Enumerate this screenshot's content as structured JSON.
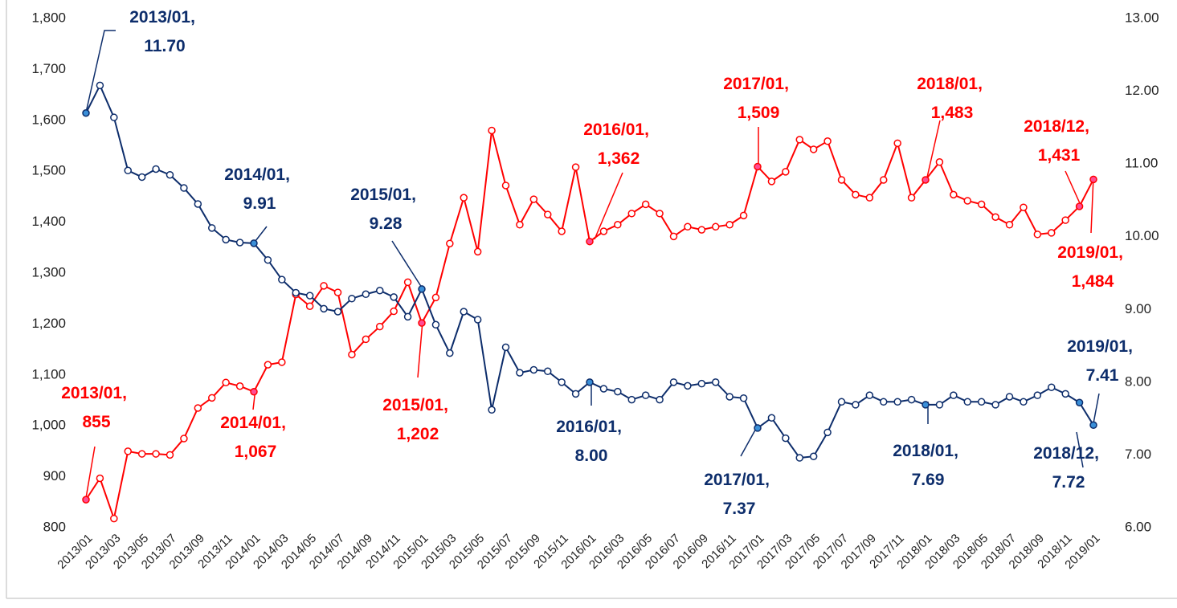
{
  "chart_data": {
    "type": "line",
    "categories": [
      "2013/01",
      null,
      "2013/03",
      null,
      "2013/05",
      null,
      "2013/07",
      null,
      "2013/09",
      null,
      "2013/11",
      null,
      "2014/01",
      null,
      "2014/03",
      null,
      "2014/05",
      null,
      "2014/07",
      null,
      "2014/09",
      null,
      "2014/11",
      null,
      "2015/01",
      null,
      "2015/03",
      null,
      "2015/05",
      null,
      "2015/07",
      null,
      "2015/09",
      null,
      "2015/11",
      null,
      "2016/01",
      null,
      "2016/03",
      null,
      "2016/05",
      null,
      "2016/07",
      null,
      "2016/09",
      null,
      "2016/11",
      null,
      "2017/01",
      null,
      "2017/03",
      null,
      "2017/05",
      null,
      "2017/07",
      null,
      "2017/09",
      null,
      "2017/11",
      null,
      "2018/01",
      null,
      "2018/03",
      null,
      "2018/05",
      null,
      "2018/07",
      null,
      "2018/09",
      null,
      "2018/11",
      null,
      "2019/01"
    ],
    "series": [
      {
        "color": "#ff0000",
        "marker_fill": "#ff4d94",
        "values": [
          855,
          897,
          818,
          950,
          945,
          945,
          943,
          975,
          1035,
          1055,
          1085,
          1078,
          1067,
          1120,
          1125,
          1258,
          1235,
          1275,
          1262,
          1140,
          1170,
          1195,
          1225,
          1282,
          1202,
          1252,
          1358,
          1448,
          1342,
          1580,
          1472,
          1395,
          1445,
          1415,
          1382,
          1508,
          1362,
          1382,
          1395,
          1417,
          1435,
          1417,
          1372,
          1391,
          1385,
          1391,
          1395,
          1413,
          1509,
          1480,
          1499,
          1562,
          1543,
          1559,
          1483,
          1454,
          1448,
          1483,
          1555,
          1448,
          1483,
          1518,
          1454,
          1442,
          1435,
          1410,
          1395,
          1429,
          1376,
          1379,
          1404,
          1431,
          1484
        ],
        "value_labels": [
          "2013/01, 855",
          null,
          null,
          null,
          null,
          null,
          null,
          null,
          null,
          null,
          null,
          null,
          "2014/01, 1,067",
          null,
          null,
          null,
          null,
          null,
          null,
          null,
          null,
          null,
          null,
          null,
          "2015/01, 1,202",
          null,
          null,
          null,
          null,
          null,
          null,
          null,
          null,
          null,
          null,
          null,
          "2016/01, 1,362",
          null,
          null,
          null,
          null,
          null,
          null,
          null,
          null,
          null,
          null,
          null,
          "2017/01, 1,509",
          null,
          null,
          null,
          null,
          null,
          null,
          null,
          null,
          null,
          null,
          null,
          "2018/01, 1,483",
          null,
          null,
          null,
          null,
          null,
          null,
          null,
          null,
          null,
          null,
          "2018/12, 1,431",
          "2019/01, 1,484"
        ]
      },
      {
        "color": "#0d2d6b",
        "marker_fill": "#3a8fd8",
        "axis": "y2",
        "values": [
          11.7,
          12.08,
          11.64,
          10.91,
          10.82,
          10.93,
          10.85,
          10.67,
          10.45,
          10.12,
          9.96,
          9.92,
          9.91,
          9.68,
          9.41,
          9.23,
          9.19,
          9.01,
          8.97,
          9.15,
          9.21,
          9.26,
          9.17,
          8.9,
          9.28,
          8.79,
          8.4,
          8.97,
          8.86,
          7.62,
          8.48,
          8.13,
          8.17,
          8.15,
          8.0,
          7.84,
          8.0,
          7.91,
          7.87,
          7.76,
          7.82,
          7.76,
          8.0,
          7.95,
          7.98,
          8.0,
          7.8,
          7.78,
          7.37,
          7.51,
          7.23,
          6.96,
          6.98,
          7.31,
          7.73,
          7.69,
          7.82,
          7.73,
          7.73,
          7.76,
          7.69,
          7.69,
          7.82,
          7.73,
          7.73,
          7.69,
          7.8,
          7.73,
          7.82,
          7.93,
          7.84,
          7.72,
          7.41
        ],
        "value_labels": [
          "2013/01, 11.70",
          null,
          null,
          null,
          null,
          null,
          null,
          null,
          null,
          null,
          null,
          null,
          "2014/01, 9.91",
          null,
          null,
          null,
          null,
          null,
          null,
          null,
          null,
          null,
          null,
          null,
          "2015/01, 9.28",
          null,
          null,
          null,
          null,
          null,
          null,
          null,
          null,
          null,
          null,
          null,
          "2016/01, 8.00",
          null,
          null,
          null,
          null,
          null,
          null,
          null,
          null,
          null,
          null,
          null,
          "2017/01, 7.37",
          null,
          null,
          null,
          null,
          null,
          null,
          null,
          null,
          null,
          null,
          null,
          "2018/01, 7.69",
          null,
          null,
          null,
          null,
          null,
          null,
          null,
          null,
          null,
          null,
          "2018/12, 7.72",
          "2019/01, 7.41"
        ]
      }
    ],
    "ylim": [
      800,
      1800
    ],
    "yticks": [
      800,
      900,
      {
        "value": 1000,
        "label": "1,000"
      },
      {
        "value": 1100,
        "label": "1,100"
      },
      {
        "value": 1200,
        "label": "1,200"
      },
      {
        "value": 1300,
        "label": "1,300"
      },
      {
        "value": 1400,
        "label": "1,400"
      },
      {
        "value": 1500,
        "label": "1,500"
      },
      {
        "value": 1600,
        "label": "1,600"
      },
      {
        "value": 1700,
        "label": "1,700"
      },
      {
        "value": 1800,
        "label": "1,800"
      }
    ],
    "y2lim": [
      6,
      13
    ],
    "y2ticks": [
      {
        "value": 6,
        "label": "6.00"
      },
      {
        "value": 7,
        "label": "7.00"
      },
      {
        "value": 8,
        "label": "8.00"
      },
      {
        "value": 9,
        "label": "9.00"
      },
      {
        "value": 10,
        "label": "10.00"
      },
      {
        "value": 11,
        "label": "11.00"
      },
      {
        "value": 12,
        "label": "12.00"
      },
      {
        "value": 13,
        "label": "13.00"
      }
    ],
    "grid": false
  }
}
